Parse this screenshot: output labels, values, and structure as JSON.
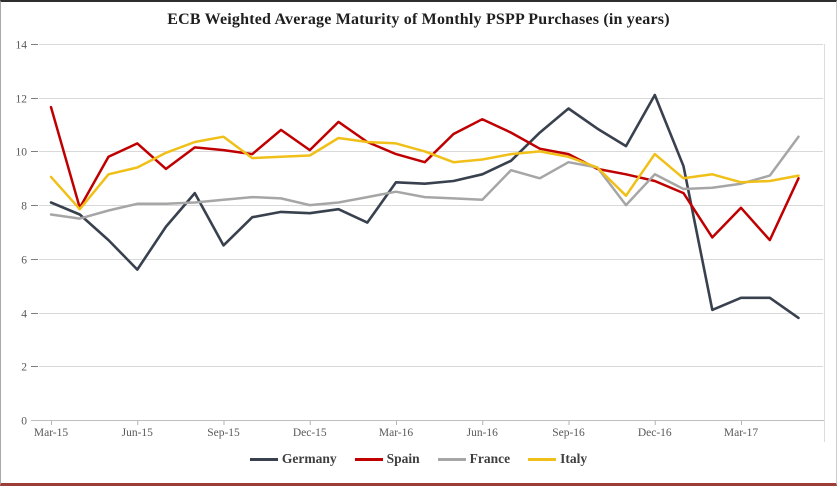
{
  "chart_data": {
    "type": "line",
    "title": "ECB Weighted Average Maturity of Monthly PSPP Purchases (in years)",
    "x": [
      "Mar-15",
      "Apr-15",
      "May-15",
      "Jun-15",
      "Jul-15",
      "Aug-15",
      "Sep-15",
      "Oct-15",
      "Nov-15",
      "Dec-15",
      "Jan-16",
      "Feb-16",
      "Mar-16",
      "Apr-16",
      "May-16",
      "Jun-16",
      "Jul-16",
      "Aug-16",
      "Sep-16",
      "Oct-16",
      "Nov-16",
      "Dec-16",
      "Jan-17",
      "Feb-17",
      "Mar-17",
      "Apr-17",
      "May-17"
    ],
    "x_axis": {
      "tick_indices": [
        0,
        3,
        6,
        9,
        12,
        15,
        18,
        21,
        24
      ],
      "tick_labels": [
        "Mar-15",
        "Jun-15",
        "Sep-15",
        "Dec-15",
        "Mar-16",
        "Jun-16",
        "Sep-16",
        "Dec-16",
        "Mar-17"
      ]
    },
    "y_axis": {
      "ticks": [
        {
          "label": "0",
          "value": 0
        },
        {
          "label": "2",
          "value": 2
        },
        {
          "label": "4",
          "value": 4
        },
        {
          "label": "6",
          "value": 6
        },
        {
          "label": "8",
          "value": 8
        },
        {
          "label": "10",
          "value": 10
        },
        {
          "label": "12",
          "value": 12
        },
        {
          "label": "14",
          "value": 14
        }
      ],
      "range": [
        0,
        14
      ],
      "grid": "horizontal"
    },
    "legend_position": "bottom",
    "series": [
      {
        "name": "Germany",
        "color": "#39414f",
        "values": [
          8.1,
          7.65,
          6.7,
          5.6,
          7.2,
          8.45,
          6.5,
          7.55,
          7.75,
          7.7,
          7.85,
          7.35,
          8.85,
          8.8,
          8.9,
          9.15,
          9.65,
          10.7,
          11.6,
          10.85,
          10.2,
          12.1,
          9.45,
          4.1,
          4.55,
          4.55,
          3.8
        ]
      },
      {
        "name": "Spain",
        "color": "#c00000",
        "values": [
          11.65,
          7.9,
          9.8,
          10.3,
          9.35,
          10.15,
          10.05,
          9.9,
          10.8,
          10.05,
          11.1,
          10.35,
          9.9,
          9.6,
          10.65,
          11.2,
          10.7,
          10.1,
          9.9,
          9.35,
          9.15,
          8.9,
          8.45,
          6.8,
          7.9,
          6.7,
          9.0
        ]
      },
      {
        "name": "France",
        "color": "#a6a6a6",
        "values": [
          7.65,
          7.5,
          7.8,
          8.05,
          8.05,
          8.1,
          8.2,
          8.3,
          8.25,
          8.0,
          8.1,
          8.3,
          8.5,
          8.3,
          8.25,
          8.2,
          9.3,
          9.0,
          9.6,
          9.4,
          8.0,
          9.15,
          8.6,
          8.65,
          8.8,
          9.1,
          10.55
        ]
      },
      {
        "name": "Italy",
        "color": "#f0c019",
        "values": [
          9.05,
          7.85,
          9.15,
          9.4,
          9.95,
          10.35,
          10.55,
          9.75,
          9.8,
          9.85,
          10.5,
          10.35,
          10.3,
          10.0,
          9.6,
          9.7,
          9.9,
          10.0,
          9.8,
          9.4,
          8.35,
          9.9,
          9.0,
          9.15,
          8.85,
          8.9,
          9.1
        ]
      }
    ],
    "style": {
      "gridline_color": "#d9d9d9",
      "axis_line_color": "#bfbfbf",
      "tick_mark_color": "#7f7f7f",
      "x_tick_mark_color": "#b3b3b3",
      "tick_text_color": "#595959",
      "plot_right_border_color": "#dddddd"
    }
  }
}
